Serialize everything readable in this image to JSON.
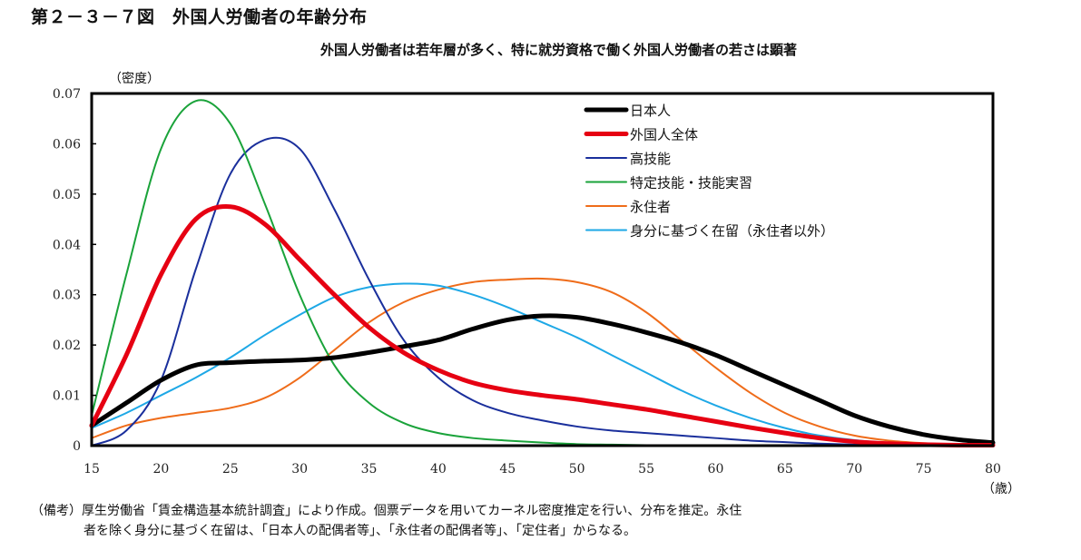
{
  "figure": {
    "title": "第２－３－７図　外国人労働者の年齢分布",
    "subtitle": "外国人労働者は若年層が多く、特に就労資格で働く外国人労働者の若さは顕著",
    "note_line1": "（備考）厚生労働省「賃金構造基本統計調査」により作成。個票データを用いてカーネル密度推定を行い、分布を推定。永住",
    "note_line2": "者を除く身分に基づく在留は、「日本人の配偶者等」、「永住者の配偶者等」、「定住者」からなる。"
  },
  "chart_data": {
    "type": "line",
    "title": "外国人労働者の年齢分布",
    "xlabel": "（歳）",
    "ylabel": "（密度）",
    "xlim": [
      15,
      80
    ],
    "ylim": [
      0,
      0.07
    ],
    "xticks": [
      "15",
      "20",
      "25",
      "30",
      "35",
      "40",
      "45",
      "50",
      "55",
      "60",
      "65",
      "70",
      "75",
      "80"
    ],
    "yticks": [
      "0",
      "0.01",
      "0.02",
      "0.03",
      "0.04",
      "0.05",
      "0.06",
      "0.07"
    ],
    "grid": false,
    "legend_position": "top-right",
    "x": [
      15,
      17.5,
      20,
      22.5,
      25,
      27.5,
      30,
      32.5,
      35,
      37.5,
      40,
      42.5,
      45,
      47.5,
      50,
      52.5,
      55,
      57.5,
      60,
      62.5,
      65,
      67.5,
      70,
      72.5,
      75,
      77.5,
      80
    ],
    "series": [
      {
        "name": "日本人",
        "color": "#000000",
        "width": "thick",
        "values": [
          0.004,
          0.0085,
          0.013,
          0.016,
          0.0165,
          0.0168,
          0.017,
          0.0175,
          0.0185,
          0.0197,
          0.021,
          0.0232,
          0.025,
          0.0258,
          0.0255,
          0.0242,
          0.0225,
          0.0205,
          0.018,
          0.015,
          0.012,
          0.009,
          0.006,
          0.0038,
          0.0022,
          0.0012,
          0.0006
        ]
      },
      {
        "name": "外国人全体",
        "color": "#e60012",
        "width": "thick",
        "values": [
          0.004,
          0.018,
          0.034,
          0.045,
          0.0475,
          0.044,
          0.037,
          0.03,
          0.0235,
          0.0185,
          0.015,
          0.0125,
          0.011,
          0.01,
          0.0092,
          0.0082,
          0.0072,
          0.006,
          0.0048,
          0.0036,
          0.0025,
          0.0015,
          0.0008,
          0.0004,
          0.0002,
          0.0001,
          0.0001
        ]
      },
      {
        "name": "高技能",
        "color": "#1a2f9c",
        "width": "thin",
        "values": [
          0,
          0.003,
          0.013,
          0.035,
          0.054,
          0.0608,
          0.059,
          0.047,
          0.033,
          0.021,
          0.0135,
          0.009,
          0.0065,
          0.005,
          0.0038,
          0.003,
          0.0025,
          0.002,
          0.0015,
          0.001,
          0.0007,
          0.0004,
          0.0002,
          0.0001,
          0.0001,
          0,
          0
        ]
      },
      {
        "name": "特定技能・技能実習",
        "color": "#1aa33a",
        "width": "thin",
        "values": [
          0.006,
          0.034,
          0.059,
          0.0685,
          0.064,
          0.048,
          0.03,
          0.016,
          0.0085,
          0.0045,
          0.0025,
          0.0015,
          0.001,
          0.0006,
          0.0003,
          0.0002,
          0.0001,
          0,
          0,
          0,
          0,
          0,
          0,
          0,
          0,
          0,
          0
        ]
      },
      {
        "name": "永住者",
        "color": "#ef6c1a",
        "width": "thin",
        "values": [
          0.0015,
          0.004,
          0.0055,
          0.0065,
          0.0075,
          0.0095,
          0.0135,
          0.019,
          0.0245,
          0.0285,
          0.031,
          0.0325,
          0.033,
          0.0332,
          0.0325,
          0.0305,
          0.0265,
          0.021,
          0.0155,
          0.0105,
          0.0065,
          0.0038,
          0.002,
          0.001,
          0.0005,
          0.0002,
          0.0001
        ]
      },
      {
        "name": "身分に基づく在留（永住者以外）",
        "color": "#1ea8e6",
        "width": "thin",
        "values": [
          0.0035,
          0.0065,
          0.01,
          0.0135,
          0.0175,
          0.022,
          0.026,
          0.0295,
          0.0315,
          0.0322,
          0.0318,
          0.03,
          0.0275,
          0.0245,
          0.0215,
          0.018,
          0.0145,
          0.011,
          0.008,
          0.0055,
          0.0035,
          0.002,
          0.0011,
          0.0005,
          0.0002,
          0.0001,
          0
        ]
      }
    ]
  }
}
